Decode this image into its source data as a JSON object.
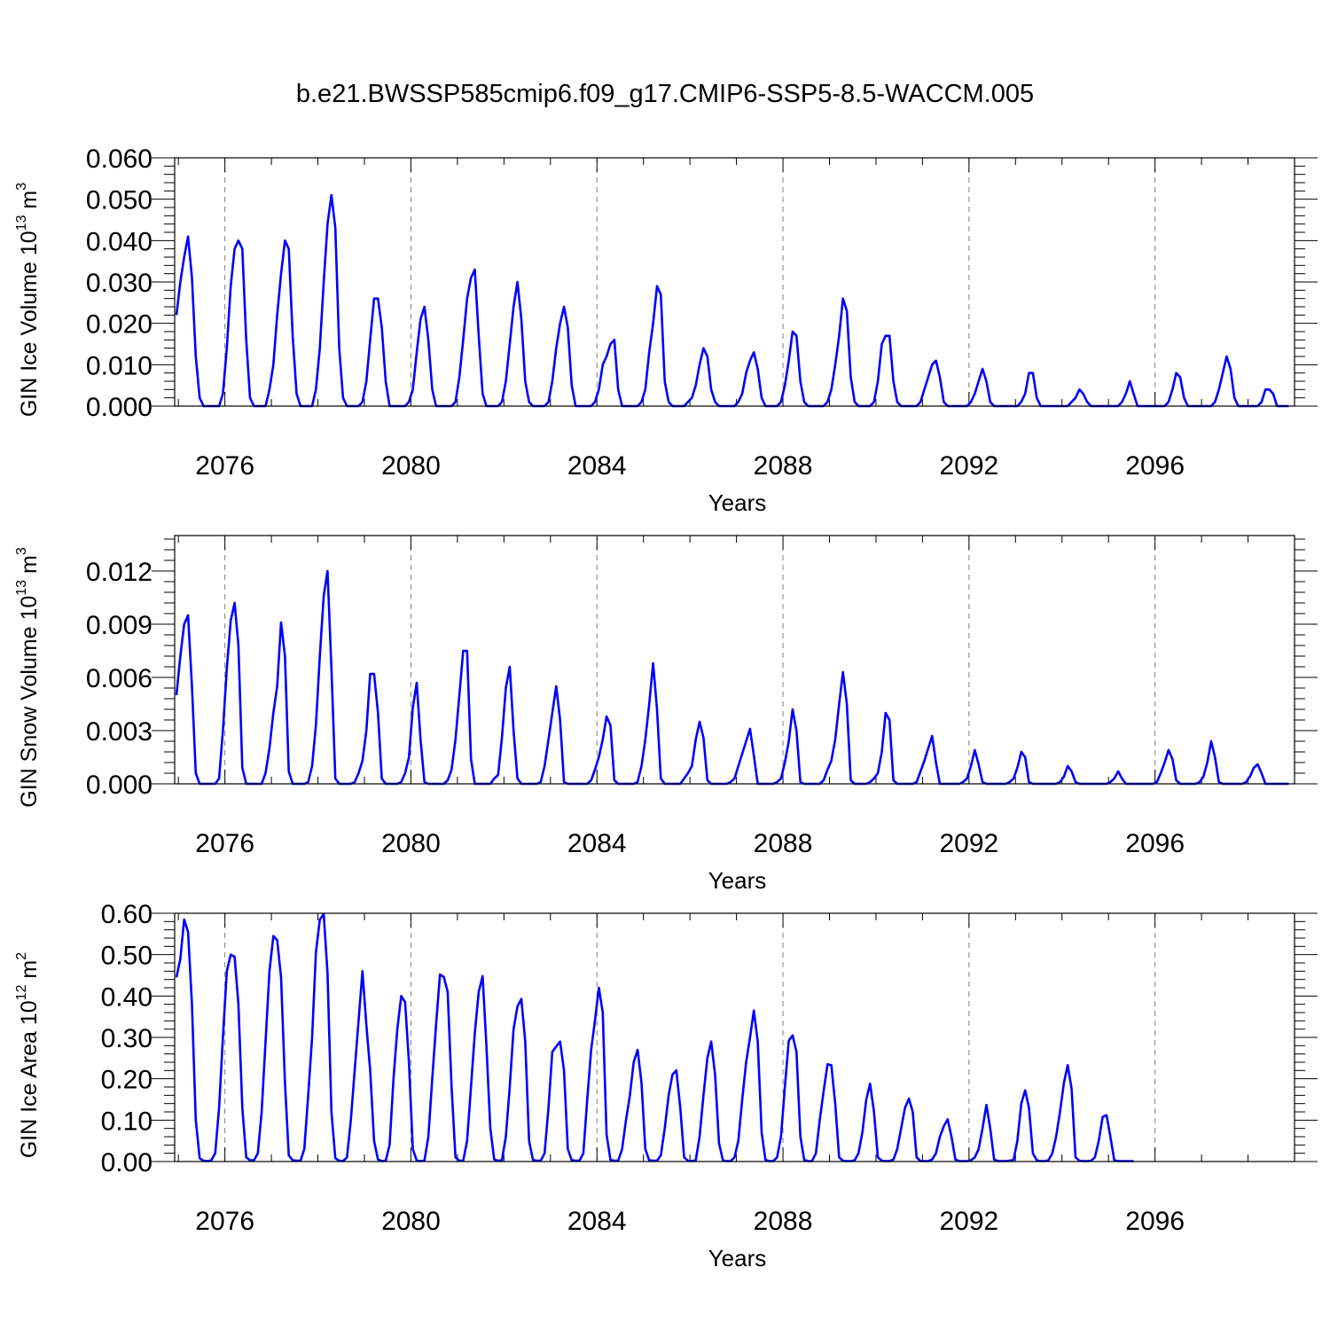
{
  "figure": {
    "title": "b.e21.BWSSP585cmip6.f09_g17.CMIP6-SSP5-8.5-WACCM.005"
  },
  "chart_data": [
    {
      "type": "line",
      "ylabel": {
        "main": "GIN Ice Volume 10",
        "exp": "13",
        "unit": " m",
        "unit_exp": "3"
      },
      "xlabel": "Years",
      "xlim": [
        2074.92,
        2099
      ],
      "ylim": [
        0,
        0.06
      ],
      "yticks": [
        0.0,
        0.01,
        0.02,
        0.03,
        0.04,
        0.05,
        0.06
      ],
      "ytick_labels": [
        "0.000",
        "0.010",
        "0.020",
        "0.030",
        "0.040",
        "0.050",
        "0.060"
      ],
      "xticks": [
        2076,
        2080,
        2084,
        2088,
        2092,
        2096
      ],
      "xtick_labels": [
        "2076",
        "2080",
        "2084",
        "2088",
        "2092",
        "2096"
      ],
      "grid": "dashed vertical at labeled years",
      "line_color": "#0000ff",
      "series": [
        {
          "start": 2074.958,
          "step": 0.08333,
          "values": [
            0.022,
            0.03,
            0.036,
            0.041,
            0.031,
            0.012,
            0.002,
            0.0,
            0.0,
            0.0,
            0.0,
            0.0,
            0.003,
            0.014,
            0.029,
            0.038,
            0.04,
            0.038,
            0.016,
            0.002,
            0.0,
            0.0,
            0.0,
            0.0,
            0.004,
            0.01,
            0.022,
            0.032,
            0.04,
            0.038,
            0.017,
            0.003,
            0.0,
            0.0,
            0.0,
            0.0,
            0.004,
            0.014,
            0.03,
            0.044,
            0.051,
            0.043,
            0.014,
            0.002,
            0.0,
            0.0,
            0.0,
            0.0,
            0.001,
            0.006,
            0.016,
            0.026,
            0.026,
            0.019,
            0.006,
            0.0,
            0.0,
            0.0,
            0.0,
            0.0,
            0.001,
            0.004,
            0.013,
            0.021,
            0.024,
            0.016,
            0.004,
            0.0,
            0.0,
            0.0,
            0.0,
            0.0,
            0.001,
            0.007,
            0.016,
            0.026,
            0.031,
            0.033,
            0.017,
            0.003,
            0.0,
            0.0,
            0.0,
            0.0,
            0.001,
            0.006,
            0.015,
            0.024,
            0.03,
            0.021,
            0.006,
            0.001,
            0.0,
            0.0,
            0.0,
            0.0,
            0.001,
            0.006,
            0.014,
            0.02,
            0.024,
            0.019,
            0.005,
            0.0,
            0.0,
            0.0,
            0.0,
            0.0,
            0.001,
            0.004,
            0.01,
            0.012,
            0.015,
            0.016,
            0.004,
            0.0,
            0.0,
            0.0,
            0.0,
            0.0,
            0.001,
            0.004,
            0.013,
            0.02,
            0.029,
            0.027,
            0.006,
            0.001,
            0.0,
            0.0,
            0.0,
            0.0,
            0.001,
            0.002,
            0.005,
            0.01,
            0.014,
            0.012,
            0.004,
            0.001,
            0.0,
            0.0,
            0.0,
            0.0,
            0.0,
            0.001,
            0.003,
            0.008,
            0.011,
            0.013,
            0.009,
            0.002,
            0.0,
            0.0,
            0.0,
            0.0,
            0.001,
            0.005,
            0.011,
            0.018,
            0.017,
            0.006,
            0.001,
            0.0,
            0.0,
            0.0,
            0.0,
            0.0,
            0.001,
            0.004,
            0.01,
            0.017,
            0.026,
            0.023,
            0.007,
            0.001,
            0.0,
            0.0,
            0.0,
            0.0,
            0.001,
            0.006,
            0.015,
            0.017,
            0.017,
            0.006,
            0.001,
            0.0,
            0.0,
            0.0,
            0.0,
            0.0,
            0.001,
            0.004,
            0.007,
            0.01,
            0.011,
            0.007,
            0.001,
            0.0,
            0.0,
            0.0,
            0.0,
            0.0,
            0.0,
            0.001,
            0.003,
            0.006,
            0.009,
            0.006,
            0.001,
            0.0,
            0.0,
            0.0,
            0.0,
            0.0,
            0.0,
            0.0,
            0.001,
            0.003,
            0.008,
            0.008,
            0.002,
            0.0,
            0.0,
            0.0,
            0.0,
            0.0,
            0.0,
            0.0,
            0.0,
            0.001,
            0.002,
            0.004,
            0.003,
            0.001,
            0.0,
            0.0,
            0.0,
            0.0,
            0.0,
            0.0,
            0.0,
            0.0,
            0.001,
            0.003,
            0.006,
            0.003,
            0.0,
            0.0,
            0.0,
            0.0,
            0.0,
            0.0,
            0.0,
            0.0,
            0.001,
            0.004,
            0.008,
            0.007,
            0.002,
            0.0,
            0.0,
            0.0,
            0.0,
            0.0,
            0.0,
            0.0,
            0.001,
            0.004,
            0.008,
            0.012,
            0.009,
            0.002,
            0.0,
            0.0,
            0.0,
            0.0,
            0.0,
            0.0,
            0.001,
            0.004,
            0.004,
            0.003,
            0.0,
            0.0,
            0.0,
            0.0
          ]
        }
      ]
    },
    {
      "type": "line",
      "ylabel": {
        "main": "GIN Snow Volume 10",
        "exp": "13",
        "unit": " m",
        "unit_exp": "3"
      },
      "xlabel": "Years",
      "xlim": [
        2074.92,
        2099
      ],
      "ylim": [
        0,
        0.014
      ],
      "yticks": [
        0.0,
        0.003,
        0.006,
        0.009,
        0.012
      ],
      "ytick_labels": [
        "0.000",
        "0.003",
        "0.006",
        "0.009",
        "0.012"
      ],
      "xticks": [
        2076,
        2080,
        2084,
        2088,
        2092,
        2096
      ],
      "xtick_labels": [
        "2076",
        "2080",
        "2084",
        "2088",
        "2092",
        "2096"
      ],
      "grid": "dashed vertical at labeled years",
      "line_color": "#0000ff",
      "series": [
        {
          "start": 2074.958,
          "step": 0.08333,
          "values": [
            0.005,
            0.0072,
            0.009,
            0.0095,
            0.0055,
            0.0006,
            0.0,
            0.0,
            0.0,
            0.0,
            0.0,
            0.0003,
            0.003,
            0.0065,
            0.0092,
            0.0102,
            0.0078,
            0.0009,
            0.0,
            0.0,
            0.0,
            0.0,
            0.0,
            0.0006,
            0.002,
            0.004,
            0.0055,
            0.0091,
            0.0072,
            0.0007,
            0.0,
            0.0,
            0.0,
            0.0,
            0.0001,
            0.001,
            0.0033,
            0.0072,
            0.0106,
            0.012,
            0.0065,
            0.0003,
            0.0,
            0.0,
            0.0,
            0.0,
            0.0001,
            0.0006,
            0.0013,
            0.003,
            0.0062,
            0.0062,
            0.004,
            0.0003,
            0.0,
            0.0,
            0.0,
            0.0,
            0.0001,
            0.0006,
            0.0015,
            0.0043,
            0.0057,
            0.0025,
            0.0001,
            0.0,
            0.0,
            0.0,
            0.0,
            0.0,
            0.0002,
            0.0008,
            0.0025,
            0.005,
            0.0075,
            0.0075,
            0.0014,
            0.0,
            0.0,
            0.0,
            0.0,
            0.0,
            0.0003,
            0.0005,
            0.0026,
            0.0054,
            0.0066,
            0.003,
            0.0003,
            0.0,
            0.0,
            0.0,
            0.0,
            0.0,
            0.0001,
            0.001,
            0.0025,
            0.004,
            0.0055,
            0.0036,
            0.0001,
            0.0,
            0.0,
            0.0,
            0.0,
            0.0,
            0.0,
            0.0002,
            0.0008,
            0.0015,
            0.0025,
            0.0038,
            0.0033,
            0.0002,
            0.0,
            0.0,
            0.0,
            0.0,
            0.0,
            0.0001,
            0.001,
            0.0025,
            0.0045,
            0.0068,
            0.0042,
            0.0003,
            0.0,
            0.0,
            0.0,
            0.0,
            0.0,
            0.0003,
            0.0006,
            0.001,
            0.0025,
            0.0035,
            0.0026,
            0.0002,
            0.0,
            0.0,
            0.0,
            0.0,
            0.0,
            0.0001,
            0.0003,
            0.001,
            0.0017,
            0.0024,
            0.0031,
            0.0016,
            0.0,
            0.0,
            0.0,
            0.0,
            0.0,
            0.0001,
            0.0003,
            0.0012,
            0.0024,
            0.0042,
            0.003,
            0.0001,
            0.0,
            0.0,
            0.0,
            0.0,
            0.0,
            0.0002,
            0.0008,
            0.0013,
            0.0025,
            0.0045,
            0.0063,
            0.0045,
            0.0002,
            0.0,
            0.0,
            0.0,
            0.0,
            0.0001,
            0.0003,
            0.0006,
            0.0018,
            0.004,
            0.0036,
            0.0002,
            0.0,
            0.0,
            0.0,
            0.0,
            0.0,
            0.0001,
            0.0007,
            0.0013,
            0.002,
            0.0027,
            0.0012,
            0.0,
            0.0,
            0.0,
            0.0,
            0.0,
            0.0,
            0.0001,
            0.0003,
            0.001,
            0.0019,
            0.0011,
            0.0001,
            0.0,
            0.0,
            0.0,
            0.0,
            0.0,
            0.0,
            0.0001,
            0.0003,
            0.0009,
            0.0018,
            0.0015,
            0.0001,
            0.0,
            0.0,
            0.0,
            0.0,
            0.0,
            0.0,
            0.0,
            0.0001,
            0.0004,
            0.001,
            0.0007,
            0.0001,
            0.0,
            0.0,
            0.0,
            0.0,
            0.0,
            0.0,
            0.0,
            0.0,
            0.0001,
            0.0003,
            0.0007,
            0.0003,
            0.0,
            0.0,
            0.0,
            0.0,
            0.0,
            0.0,
            0.0,
            0.0,
            0.0001,
            0.0006,
            0.0012,
            0.0019,
            0.0014,
            0.0002,
            0.0,
            0.0,
            0.0,
            0.0,
            0.0,
            0.0001,
            0.0004,
            0.0012,
            0.0024,
            0.0015,
            0.0001,
            0.0,
            0.0,
            0.0,
            0.0,
            0.0,
            0.0,
            0.0001,
            0.0004,
            0.0009,
            0.0011,
            0.0006,
            0.0,
            0.0,
            0.0,
            0.0,
            0.0,
            0.0,
            0.0
          ]
        }
      ]
    },
    {
      "type": "line",
      "ylabel": {
        "main": "GIN Ice Area 10",
        "exp": "12",
        "unit": " m",
        "unit_exp": "2"
      },
      "xlabel": "Years",
      "xlim": [
        2074.92,
        2099
      ],
      "ylim": [
        0,
        0.6
      ],
      "yticks": [
        0.0,
        0.1,
        0.2,
        0.3,
        0.4,
        0.5,
        0.6
      ],
      "ytick_labels": [
        "0.00",
        "0.10",
        "0.20",
        "0.30",
        "0.40",
        "0.50",
        "0.60"
      ],
      "xticks": [
        2076,
        2080,
        2084,
        2088,
        2092,
        2096
      ],
      "xtick_labels": [
        "2076",
        "2080",
        "2084",
        "2088",
        "2092",
        "2096"
      ],
      "grid": "dashed vertical at labeled years",
      "line_color": "#0000ff",
      "series": [
        {
          "start": 2074.958,
          "step": 0.08333,
          "values": [
            0.445,
            0.49,
            0.585,
            0.555,
            0.38,
            0.1,
            0.008,
            0.002,
            0.001,
            0.003,
            0.02,
            0.13,
            0.3,
            0.46,
            0.5,
            0.495,
            0.38,
            0.13,
            0.01,
            0.003,
            0.003,
            0.02,
            0.12,
            0.29,
            0.46,
            0.545,
            0.535,
            0.445,
            0.19,
            0.015,
            0.003,
            0.002,
            0.002,
            0.03,
            0.16,
            0.3,
            0.505,
            0.585,
            0.598,
            0.455,
            0.12,
            0.008,
            0.002,
            0.001,
            0.01,
            0.1,
            0.22,
            0.34,
            0.46,
            0.33,
            0.22,
            0.05,
            0.005,
            0.001,
            0.002,
            0.04,
            0.2,
            0.32,
            0.4,
            0.385,
            0.24,
            0.03,
            0.002,
            0.001,
            0.002,
            0.06,
            0.2,
            0.33,
            0.452,
            0.446,
            0.41,
            0.18,
            0.01,
            0.002,
            0.002,
            0.05,
            0.18,
            0.31,
            0.41,
            0.448,
            0.28,
            0.08,
            0.005,
            0.002,
            0.003,
            0.06,
            0.18,
            0.32,
            0.375,
            0.393,
            0.29,
            0.05,
            0.004,
            0.002,
            0.002,
            0.02,
            0.13,
            0.265,
            0.278,
            0.29,
            0.22,
            0.03,
            0.003,
            0.002,
            0.002,
            0.02,
            0.15,
            0.27,
            0.34,
            0.42,
            0.36,
            0.065,
            0.004,
            0.002,
            0.002,
            0.03,
            0.1,
            0.16,
            0.24,
            0.27,
            0.19,
            0.03,
            0.003,
            0.002,
            0.002,
            0.015,
            0.08,
            0.16,
            0.21,
            0.22,
            0.13,
            0.01,
            0.002,
            0.001,
            0.003,
            0.06,
            0.16,
            0.25,
            0.29,
            0.21,
            0.045,
            0.003,
            0.001,
            0.001,
            0.01,
            0.05,
            0.15,
            0.24,
            0.3,
            0.365,
            0.29,
            0.07,
            0.004,
            0.001,
            0.001,
            0.01,
            0.06,
            0.18,
            0.292,
            0.305,
            0.265,
            0.06,
            0.004,
            0.001,
            0.001,
            0.02,
            0.1,
            0.17,
            0.235,
            0.233,
            0.14,
            0.01,
            0.002,
            0.001,
            0.001,
            0.003,
            0.02,
            0.07,
            0.15,
            0.188,
            0.12,
            0.01,
            0.002,
            0.001,
            0.001,
            0.005,
            0.03,
            0.08,
            0.13,
            0.152,
            0.12,
            0.01,
            0.001,
            0.001,
            0.001,
            0.005,
            0.02,
            0.06,
            0.085,
            0.102,
            0.06,
            0.005,
            0.001,
            0.001,
            0.001,
            0.003,
            0.01,
            0.03,
            0.08,
            0.137,
            0.08,
            0.005,
            0.001,
            0.001,
            0.001,
            0.002,
            0.004,
            0.05,
            0.14,
            0.172,
            0.13,
            0.02,
            0.003,
            0.001,
            0.001,
            0.003,
            0.02,
            0.06,
            0.12,
            0.19,
            0.233,
            0.175,
            0.01,
            0.002,
            0.001,
            0.001,
            0.002,
            0.01,
            0.05,
            0.108,
            0.112,
            0.06,
            0.003,
            0.001,
            0.001,
            0.001,
            0.001,
            0.001
          ]
        }
      ]
    }
  ]
}
